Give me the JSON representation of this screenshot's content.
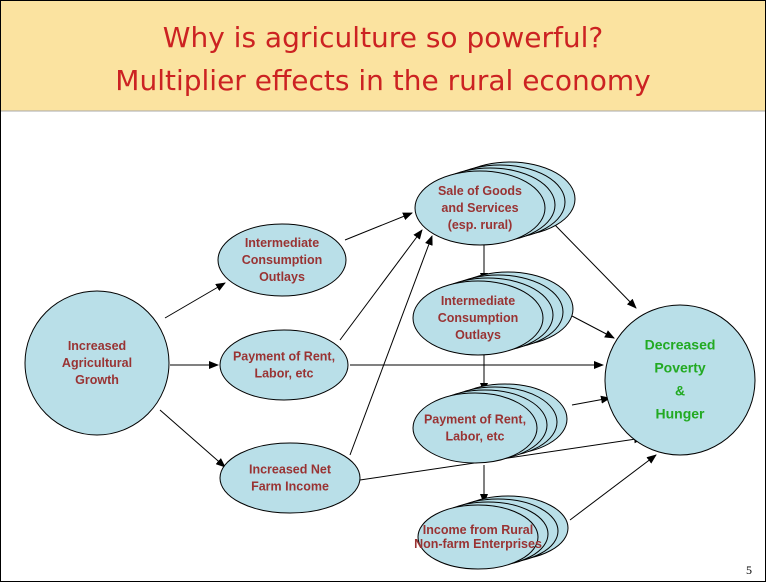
{
  "title": [
    "Why is agriculture so powerful?",
    "Multiplier effects in the rural economy"
  ],
  "nodes": [
    {
      "label": [
        "Increased",
        "Agricultural",
        "Growth"
      ]
    },
    {
      "label": [
        "Intermediate",
        "Consumption",
        "Outlays"
      ]
    },
    {
      "label": [
        "Payment of Rent,",
        "Labor, etc"
      ]
    },
    {
      "label": [
        "Increased Net",
        "Farm Income"
      ]
    },
    {
      "label": [
        "Sale of Goods",
        "and Services",
        "(esp. rural)"
      ]
    },
    {
      "label": [
        "Intermediate",
        "Consumption",
        "Outlays"
      ]
    },
    {
      "label": [
        "Payment of Rent,",
        "Labor, etc"
      ]
    },
    {
      "label": [
        "Income from Rural",
        "Non-farm Enterprises"
      ]
    },
    {
      "label": [
        "Decreased",
        "Poverty",
        "&",
        "Hunger"
      ]
    }
  ],
  "page_number": "5"
}
